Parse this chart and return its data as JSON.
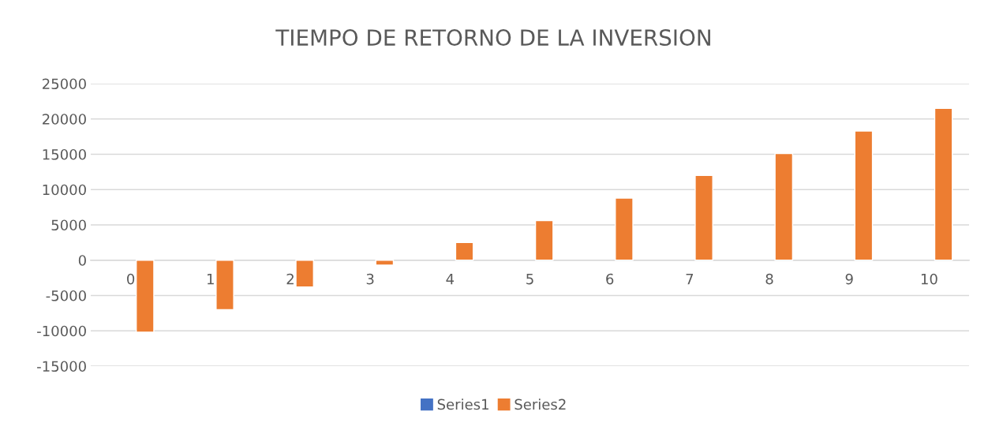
{
  "chart_data": {
    "type": "bar",
    "title": "TIEMPO DE RETORNO DE LA INVERSION",
    "categories": [
      "0",
      "1",
      "2",
      "3",
      "4",
      "5",
      "6",
      "7",
      "8",
      "9",
      "10"
    ],
    "series": [
      {
        "name": "Series1",
        "color": "#4472c4",
        "values": [
          null,
          null,
          null,
          null,
          null,
          null,
          null,
          null,
          null,
          null,
          null
        ]
      },
      {
        "name": "Series2",
        "color": "#ed7d31",
        "values": [
          -10200,
          -7000,
          -3800,
          -700,
          2500,
          5600,
          8800,
          12000,
          15100,
          18300,
          21500
        ]
      }
    ],
    "ylim": [
      -15000,
      25000
    ],
    "yticks": [
      -15000,
      -10000,
      -5000,
      0,
      5000,
      10000,
      15000,
      20000,
      25000
    ],
    "grid": "y",
    "legend": "bottom"
  }
}
